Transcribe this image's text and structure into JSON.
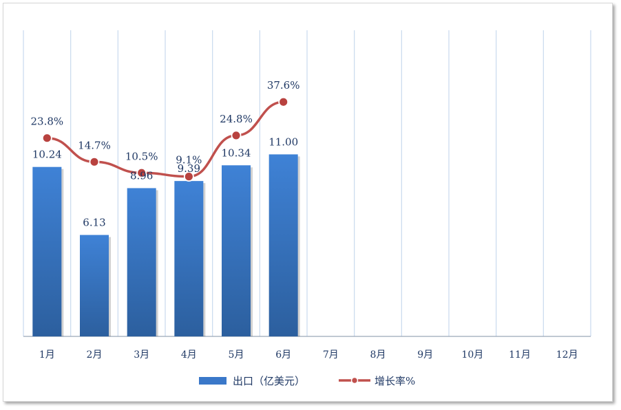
{
  "chart_data": {
    "type": "bar",
    "categories": [
      "1月",
      "2月",
      "3月",
      "4月",
      "5月",
      "6月",
      "7月",
      "8月",
      "9月",
      "10月",
      "11月",
      "12月"
    ],
    "series": [
      {
        "name": "出口（亿美元）",
        "type": "bar",
        "values": [
          10.24,
          6.13,
          8.96,
          9.39,
          10.34,
          11.0,
          null,
          null,
          null,
          null,
          null,
          null
        ],
        "labels": [
          "10.24",
          "6.13",
          "8.96",
          "9.39",
          "10.34",
          "11.00",
          "",
          "",
          "",
          "",
          "",
          ""
        ],
        "color": "#3a78c9"
      },
      {
        "name": "增长率%",
        "type": "line",
        "values": [
          23.8,
          14.7,
          10.5,
          9.1,
          24.8,
          37.6,
          null,
          null,
          null,
          null,
          null,
          null
        ],
        "labels": [
          "23.8%",
          "14.7%",
          "10.5%",
          "9.1%",
          "24.8%",
          "37.6%",
          "",
          "",
          "",
          "",
          "",
          ""
        ],
        "color": "#c0504d"
      }
    ],
    "bar_ylim": [
      0,
      18.5
    ],
    "line_ylim": [
      -52,
      65
    ],
    "grid": "vertical",
    "legend": "bottom"
  }
}
